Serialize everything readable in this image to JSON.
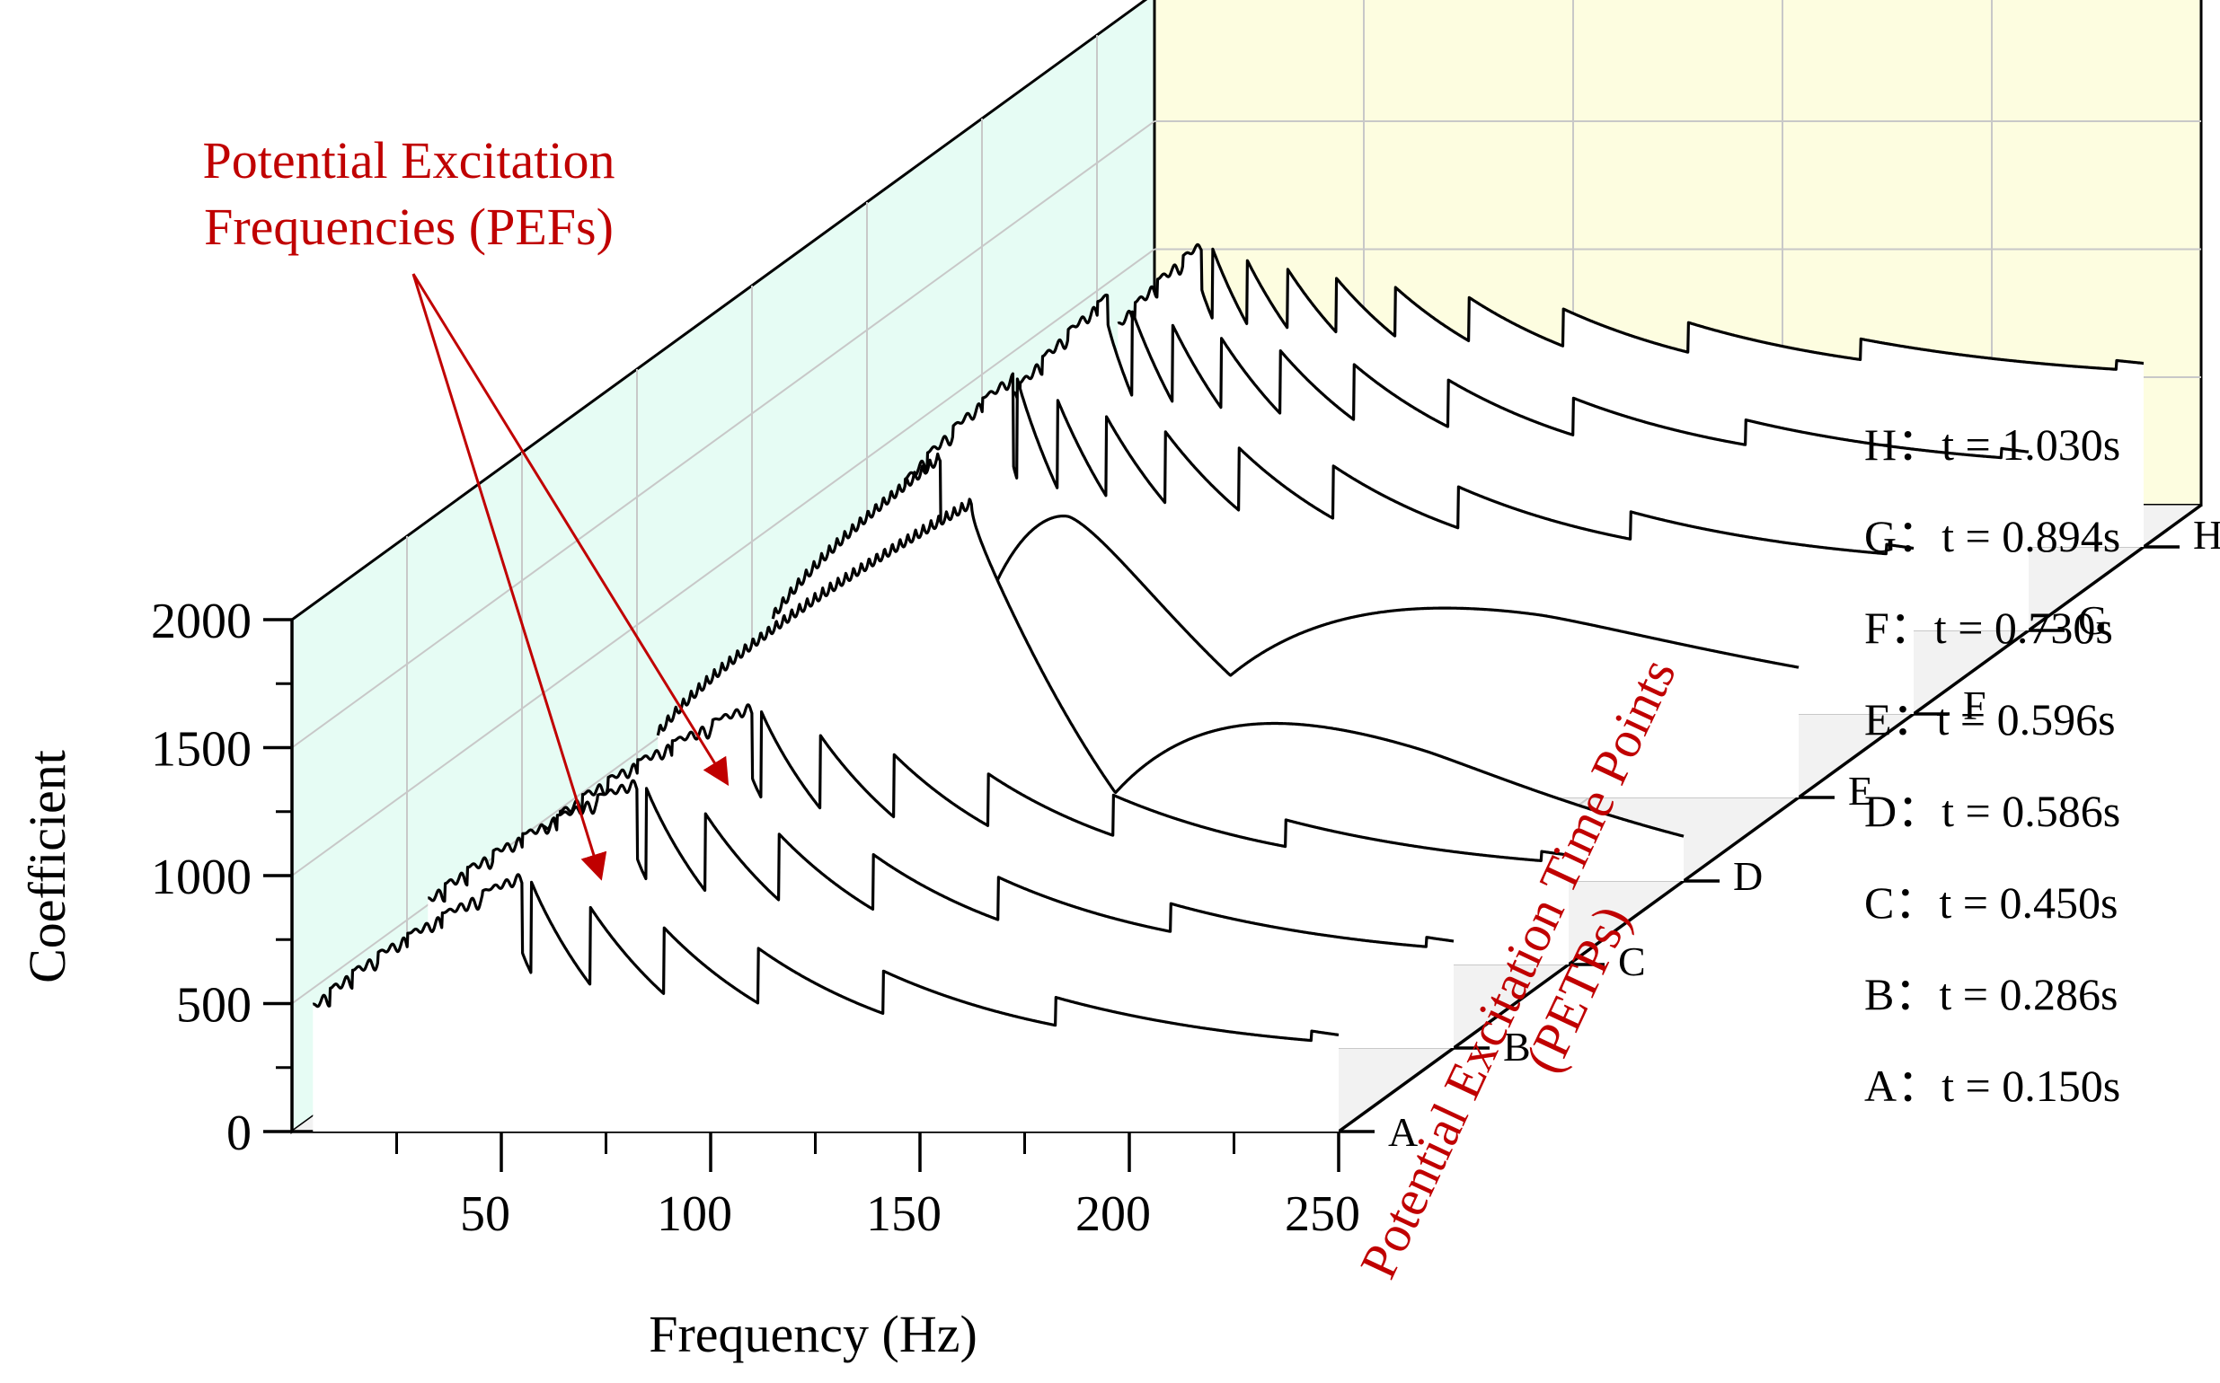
{
  "chart_data": {
    "type": "line",
    "subtype": "3d-waterfall",
    "title": "",
    "xlabel": "Frequency (Hz)",
    "ylabel": "Coefficient",
    "zlabel": "Potential Excitation Time Points (PETPs)",
    "xlim": [
      0,
      250
    ],
    "ylim": [
      0,
      2000
    ],
    "x_ticks": [
      50,
      100,
      150,
      200,
      250
    ],
    "y_ticks": [
      0,
      500,
      1000,
      1500,
      2000
    ],
    "grid": true,
    "annotation": {
      "text_line1": "Potential Excitation",
      "text_line2": "Frequencies (PEFs)",
      "color": "#c00000",
      "targets_hz": [
        80,
        105
      ]
    },
    "series": [
      {
        "name": "A",
        "label": "A：t = 0.150s",
        "time": 0.15,
        "base": 380,
        "peak": 1020,
        "rise_hz": 55,
        "dip_end": 380,
        "pattern": "sawtooth"
      },
      {
        "name": "B",
        "label": "B：t = 0.286s",
        "time": 0.286,
        "base": 480,
        "peak": 1060,
        "rise_hz": 55,
        "dip_end": 420,
        "pattern": "sawtooth"
      },
      {
        "name": "C",
        "label": "C：t = 0.450s",
        "time": 0.45,
        "base": 430,
        "peak": 1030,
        "rise_hz": 55,
        "dip_end": 430,
        "pattern": "sawtooth"
      },
      {
        "name": "D",
        "label": "D：t = 0.586s",
        "time": 0.586,
        "base": 450,
        "peak": 1500,
        "rise_hz": 80,
        "dip_end": 200,
        "pattern": "arches"
      },
      {
        "name": "E",
        "label": "E：t = 0.596s",
        "time": 0.596,
        "base": 560,
        "peak": 1350,
        "rise_hz": 45,
        "dip_end": 560,
        "pattern": "arches"
      },
      {
        "name": "F",
        "label": "F：t = 0.730s",
        "time": 0.73,
        "base": 650,
        "peak": 1340,
        "rise_hz": 35,
        "dip_end": 650,
        "pattern": "sawtooth"
      },
      {
        "name": "G",
        "label": "G：t = 0.894s",
        "time": 0.894,
        "base": 700,
        "peak": 1320,
        "rise_hz": 30,
        "dip_end": 700,
        "pattern": "sawtooth"
      },
      {
        "name": "H",
        "label": "H：t = 1.030s",
        "time": 1.03,
        "base": 720,
        "peak": 1200,
        "rise_hz": 25,
        "dip_end": 720,
        "pattern": "sawtooth"
      }
    ],
    "legend_order": [
      "H",
      "G",
      "F",
      "E",
      "D",
      "C",
      "B",
      "A"
    ]
  },
  "colors": {
    "back_wall": "#fdfde0",
    "side_wall": "#e6fcf4",
    "floor": "#f2f2f2",
    "grid": "#c8c8c8",
    "line": "#000000",
    "annotation": "#c00000"
  }
}
